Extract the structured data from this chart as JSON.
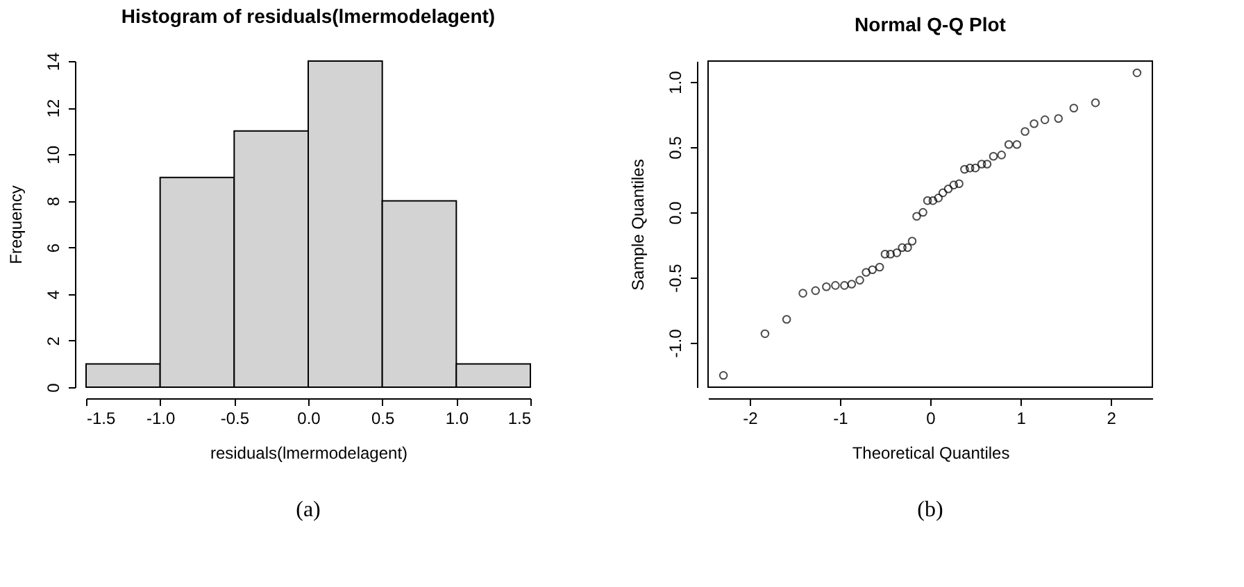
{
  "chart_data": [
    {
      "type": "histogram",
      "title": "Histogram of residuals(lmermodelagent)",
      "xlabel": "residuals(lmermodelagent)",
      "ylabel": "Frequency",
      "color": "#d3d3d3",
      "bins": [
        -1.5,
        -1.0,
        -0.5,
        0.0,
        0.5,
        1.0,
        1.5
      ],
      "values": [
        1,
        9,
        11,
        14,
        8,
        1
      ],
      "xlim": [
        -1.5,
        1.5
      ],
      "xticks": [
        -1.5,
        {
          "value": -1,
          "label": "-1.0"
        },
        -0.5,
        {
          "value": 0,
          "label": "0.0"
        },
        0.5,
        {
          "value": 1,
          "label": "1.0"
        },
        1.5
      ],
      "ylim": [
        0,
        14
      ],
      "yticks": [
        0,
        2,
        4,
        6,
        8,
        10,
        12,
        14
      ],
      "annotations": [
        "(a)"
      ]
    },
    {
      "type": "scatter",
      "title": "Normal Q-Q Plot",
      "xlabel": "Theoretical Quantiles",
      "ylabel": "Sample Quantiles",
      "color": "#000000",
      "marker": "circle",
      "x": [
        -2.29,
        -1.83,
        -1.59,
        -1.41,
        -1.27,
        -1.15,
        -1.05,
        -0.95,
        -0.87,
        -0.78,
        -0.71,
        -0.64,
        -0.56,
        -0.5,
        -0.44,
        -0.37,
        -0.31,
        -0.25,
        -0.2,
        -0.15,
        -0.08,
        -0.03,
        0.03,
        0.09,
        0.14,
        0.2,
        0.26,
        0.32,
        0.38,
        0.44,
        0.5,
        0.57,
        0.63,
        0.7,
        0.79,
        0.87,
        0.96,
        1.05,
        1.15,
        1.27,
        1.42,
        1.59,
        1.83,
        2.29
      ],
      "values": [
        -1.25,
        -0.93,
        -0.82,
        -0.62,
        -0.6,
        -0.57,
        -0.56,
        -0.56,
        -0.55,
        -0.52,
        -0.46,
        -0.44,
        -0.42,
        -0.32,
        -0.32,
        -0.31,
        -0.27,
        -0.27,
        -0.22,
        -0.03,
        0.0,
        0.09,
        0.09,
        0.11,
        0.15,
        0.18,
        0.21,
        0.22,
        0.33,
        0.34,
        0.34,
        0.37,
        0.37,
        0.43,
        0.44,
        0.52,
        0.52,
        0.62,
        0.68,
        0.71,
        0.72,
        0.8,
        0.84,
        1.07
      ],
      "xlim": [
        -2.46,
        2.46
      ],
      "xticks": [
        -2,
        -1,
        0,
        1,
        2
      ],
      "ylim": [
        -1.34,
        1.16
      ],
      "yticks": [
        {
          "value": -1,
          "label": "-1.0"
        },
        -0.5,
        {
          "value": 0,
          "label": "0.0"
        },
        0.5,
        {
          "value": 1,
          "label": "1.0"
        }
      ],
      "annotations": [
        "(b)"
      ]
    }
  ]
}
